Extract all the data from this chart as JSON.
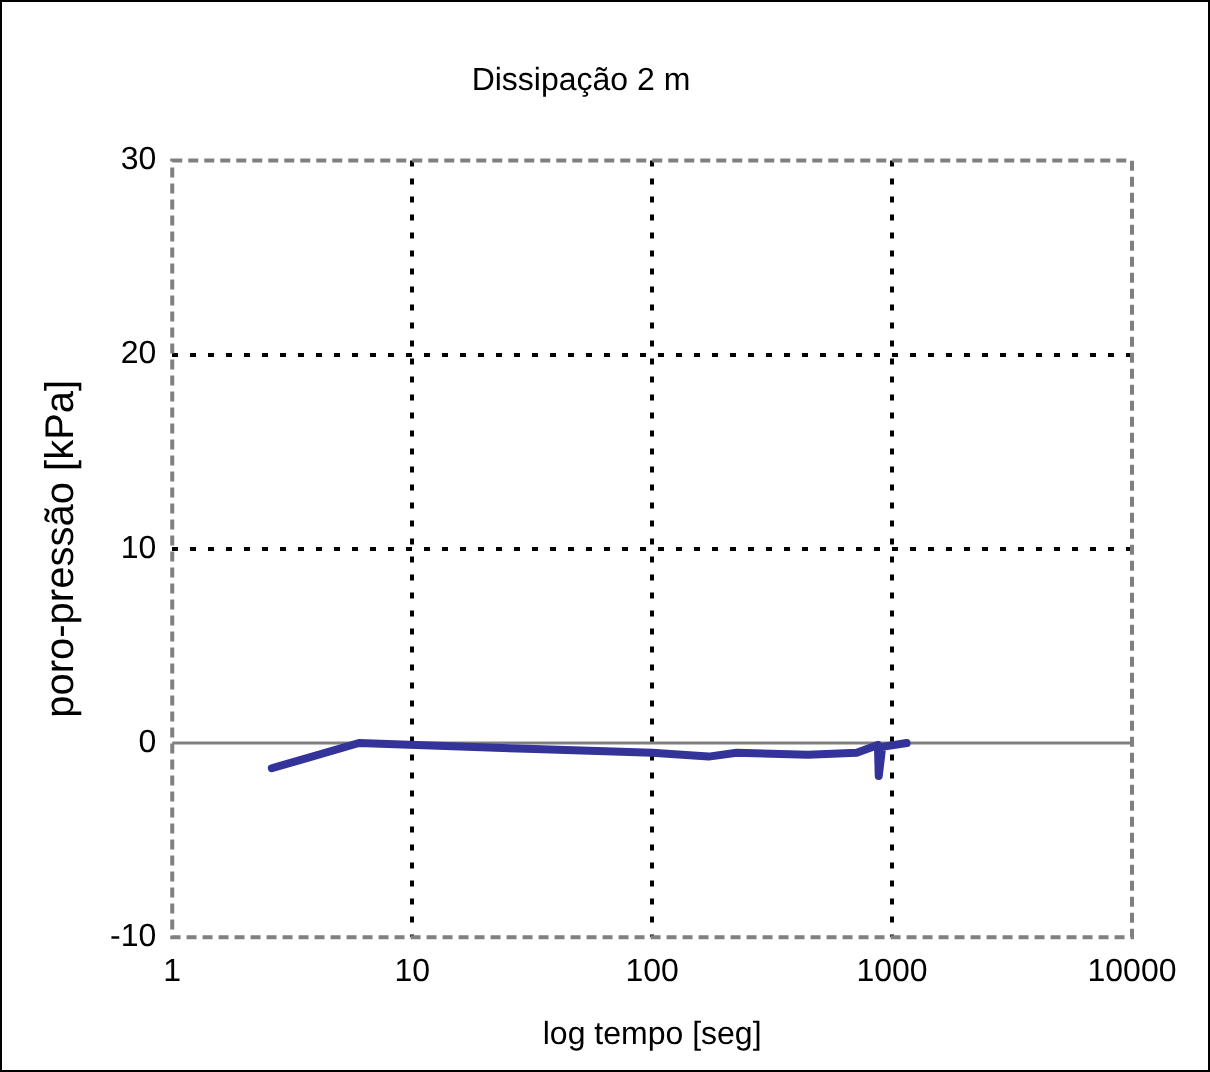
{
  "chart_data": {
    "type": "line",
    "title": "Dissipação 2 m",
    "xlabel": "log tempo [seg]",
    "ylabel": "poro-pressão [kPa]",
    "log": "x",
    "xlim": [
      1,
      10000
    ],
    "xticks": [
      1,
      10,
      100,
      1000,
      10000
    ],
    "ylim": [
      -10,
      30
    ],
    "yticks": [
      -10,
      0,
      10,
      20,
      30
    ],
    "grid": true,
    "legend": false,
    "marker": "none",
    "line_style": "solid",
    "ref_lines": [
      {
        "axis": "y",
        "value": 0,
        "color": "#808080"
      }
    ],
    "series": [
      {
        "color": "#333399",
        "x": [
          2.6,
          6.0,
          30,
          100,
          172,
          225,
          446,
          712,
          873,
          880,
          910,
          1150
        ],
        "values": [
          -1.3,
          0,
          -0.3,
          -0.5,
          -0.7,
          -0.5,
          -0.6,
          -0.5,
          -0.1,
          -1.7,
          -0.2,
          0
        ]
      }
    ]
  }
}
